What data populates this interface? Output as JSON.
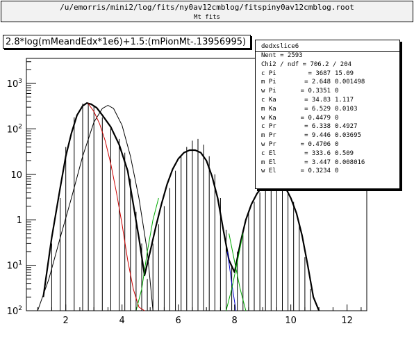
{
  "header": {
    "file_title": "/u/emorris/mini2/log/fits/ny0av12cmblog/fitspiny0av12cmblog.root",
    "canvas_title": "Mt fits"
  },
  "chart_data": {
    "type": "line",
    "title": "2.8*log(mMeandEdx*1e6)+1.5:(mPionMt-.13956995)",
    "xlabel": "",
    "ylabel": "",
    "x_range": [
      0.6,
      12.7
    ],
    "y_scale": "log",
    "y_range_decades": [
      -2,
      3.55
    ],
    "x_ticks": [
      {
        "value": 2,
        "label": "2"
      },
      {
        "value": 4,
        "label": "4"
      },
      {
        "value": 6,
        "label": "6"
      },
      {
        "value": 8,
        "label": "8"
      },
      {
        "value": 10,
        "label": "10"
      },
      {
        "value": 12,
        "label": "12"
      }
    ],
    "y_ticks": [
      {
        "exp": 3,
        "base": "10",
        "sup": "3"
      },
      {
        "exp": 2,
        "base": "10",
        "sup": "2"
      },
      {
        "exp": 1,
        "base": "10",
        "sup": ""
      },
      {
        "exp": 0,
        "base": "1",
        "sup": ""
      },
      {
        "exp": -1,
        "base": "10",
        "sup": "1"
      },
      {
        "exp": -2,
        "base": "10",
        "sup": "2"
      }
    ],
    "grid": false,
    "legend": "none",
    "series": [
      {
        "color": "#000000",
        "kind": "histogram",
        "x": [
          1.2,
          1.5,
          1.8,
          2.0,
          2.3,
          2.6,
          2.8,
          3.0,
          3.3,
          3.6,
          3.9,
          4.1,
          4.3,
          4.5,
          4.7,
          4.9,
          5.1,
          5.3,
          5.5,
          5.7,
          5.9,
          6.1,
          6.3,
          6.5,
          6.7,
          6.9,
          7.1,
          7.3,
          7.5,
          7.7,
          7.9,
          8.1,
          8.3,
          8.5,
          8.7,
          8.9,
          9.1,
          9.3,
          9.5,
          9.7,
          9.9,
          10.1,
          10.3,
          10.5,
          10.7,
          11.0
        ],
        "y": [
          0.01,
          0.3,
          3,
          40,
          180,
          360,
          370,
          330,
          180,
          110,
          60,
          30,
          8,
          1.5,
          0.3,
          0.05,
          0.3,
          0.8,
          2,
          5,
          12,
          25,
          40,
          55,
          60,
          45,
          25,
          10,
          3,
          0.6,
          0.1,
          0.2,
          0.6,
          1.5,
          2.5,
          4,
          6,
          7,
          8,
          7,
          5,
          2.5,
          0.8,
          0.15,
          0.03,
          0.01
        ]
      },
      {
        "name": "",
        "color": "#000000",
        "width": 2.2,
        "x": [
          1.2,
          1.5,
          1.8,
          2.0,
          2.2,
          2.4,
          2.6,
          2.75,
          2.9,
          3.1,
          3.3,
          3.6,
          3.9,
          4.2,
          4.4,
          4.6,
          4.8,
          5.0,
          5.2,
          5.4,
          5.6,
          5.8,
          6.0,
          6.2,
          6.4,
          6.6,
          6.8,
          7.0,
          7.2,
          7.4,
          7.6,
          7.8,
          8.0,
          8.2,
          8.4,
          8.6,
          8.8,
          9.0,
          9.2,
          9.4,
          9.6,
          9.8,
          10.0,
          10.2,
          10.4,
          10.6,
          10.8,
          11.0
        ],
        "y": [
          0.02,
          0.4,
          5,
          25,
          80,
          200,
          320,
          370,
          350,
          290,
          200,
          110,
          45,
          12,
          2.2,
          0.4,
          0.06,
          0.2,
          0.7,
          2.2,
          6,
          13,
          22,
          30,
          34,
          34,
          30,
          20,
          9,
          3,
          0.6,
          0.13,
          0.07,
          0.3,
          1,
          2.2,
          3.8,
          5.5,
          6.8,
          7.2,
          6.8,
          5.2,
          3,
          1.4,
          0.45,
          0.1,
          0.02,
          0.01
        ]
      },
      {
        "name": "",
        "color": "#000000",
        "width": 1,
        "x": [
          1.0,
          1.4,
          1.8,
          2.2,
          2.6,
          3.0,
          3.3,
          3.5,
          3.7,
          4.0,
          4.3,
          4.6,
          4.9,
          5.1
        ],
        "y": [
          0.01,
          0.05,
          0.4,
          3,
          25,
          140,
          280,
          330,
          280,
          120,
          25,
          3,
          0.2,
          0.01
        ]
      },
      {
        "name": "",
        "color": "#cc0000",
        "width": 1,
        "x": [
          2.8,
          3.0,
          3.2,
          3.4,
          3.6,
          3.8,
          4.0,
          4.2,
          4.4,
          4.6,
          4.8
        ],
        "y": [
          360,
          240,
          130,
          55,
          17,
          4,
          0.8,
          0.13,
          0.03,
          0.012,
          0.01
        ]
      },
      {
        "name": "",
        "color": "#00aa00",
        "width": 1,
        "x": [
          4.5,
          4.7,
          4.9,
          5.1,
          5.3
        ],
        "y": [
          0.01,
          0.03,
          0.2,
          1,
          3
        ]
      },
      {
        "name": "",
        "color": "#0000cc",
        "width": 1,
        "x": [
          7.75,
          7.9,
          8.05
        ],
        "y": [
          0.2,
          0.04,
          0.01
        ]
      },
      {
        "name": "",
        "color": "#00aa00",
        "width": 1,
        "x": [
          7.8,
          8.0,
          8.2,
          8.4
        ],
        "y": [
          0.5,
          0.12,
          0.03,
          0.01
        ]
      },
      {
        "name": "",
        "color": "#00aa00",
        "width": 1,
        "x": [
          7.7,
          7.9,
          8.1,
          8.3
        ],
        "y": [
          0.01,
          0.03,
          0.12,
          0.5
        ]
      }
    ]
  },
  "stats": {
    "name": "dedxslice6",
    "entries": "Nent = 2593",
    "chi2": "Chi2 / ndf = 706.2 / 204",
    "rows": [
      {
        "name": "c Pi",
        "value": "= 3687",
        "error": "15.09"
      },
      {
        "name": "m Pi",
        "value": "= 2.648",
        "error": "0.001498"
      },
      {
        "name": "w Pi",
        "value": "= 0.3351",
        "error": "0"
      },
      {
        "name": "c Ka",
        "value": "= 34.83",
        "error": "1.117"
      },
      {
        "name": "m Ka",
        "value": "= 6.529",
        "error": "0.0103"
      },
      {
        "name": "w Ka",
        "value": "= 0.4479",
        "error": "0"
      },
      {
        "name": "c Pr",
        "value": "= 6.338",
        "error": "0.4927"
      },
      {
        "name": "m Pr",
        "value": "= 9.446",
        "error": "0.03695"
      },
      {
        "name": "w Pr",
        "value": "= 0.4706",
        "error": "0"
      },
      {
        "name": "c El",
        "value": "= 333.6",
        "error": "0.509"
      },
      {
        "name": "m El",
        "value": "= 3.447",
        "error": "0.008016"
      },
      {
        "name": "w El",
        "value": "= 0.3234",
        "error": "0"
      }
    ]
  }
}
